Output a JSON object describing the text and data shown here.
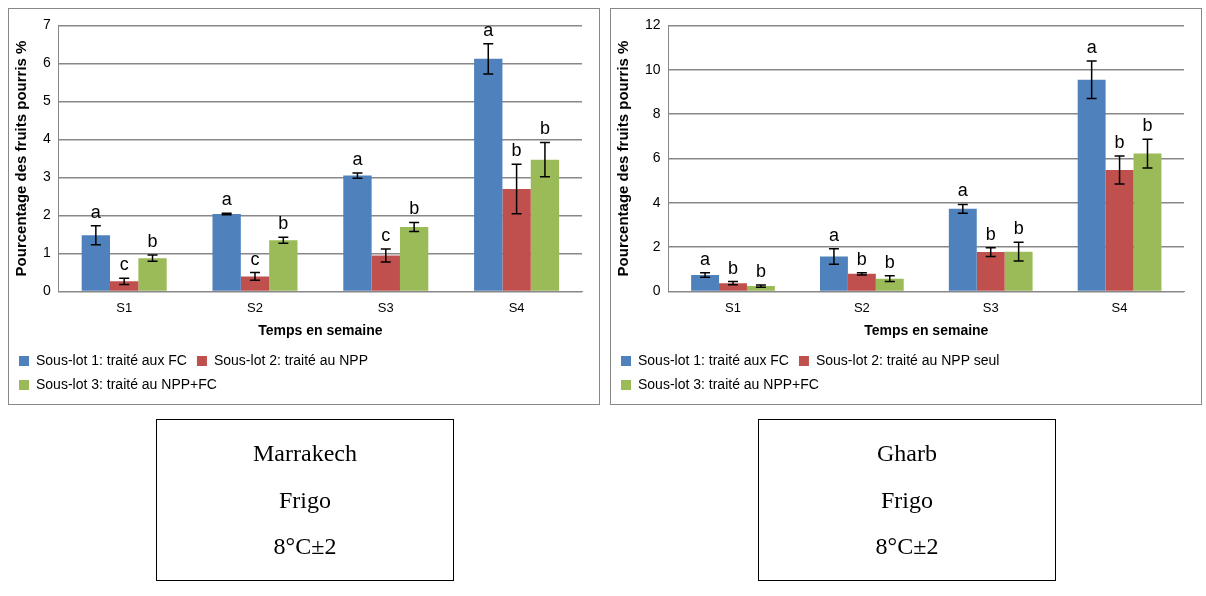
{
  "chart_data": [
    {
      "type": "bar",
      "xlabel": "Temps en semaine",
      "ylabel": "Pourcentage des fruits pourris %",
      "categories": [
        "S1",
        "S2",
        "S3",
        "S4"
      ],
      "ylim": [
        0,
        7
      ],
      "yticks": [
        0,
        1,
        2,
        3,
        4,
        5,
        6,
        7
      ],
      "grid": "y",
      "legend": "bottom",
      "annotations": [
        "Marrakech",
        "Frigo",
        "8°C±2"
      ],
      "series": [
        {
          "name": "Sous-lot 1: traité aux FC",
          "color": "#4f81bd",
          "values": [
            1.48,
            2.04,
            3.05,
            6.12
          ],
          "errors": [
            0.25,
            0.02,
            0.07,
            0.4
          ],
          "value_labels": [
            "a",
            "a",
            "a",
            "a"
          ]
        },
        {
          "name": "Sous-lot 2: traité au NPP",
          "color": "#c0504d",
          "values": [
            0.27,
            0.4,
            0.95,
            2.7
          ],
          "errors": [
            0.08,
            0.1,
            0.17,
            0.65
          ],
          "value_labels": [
            "c",
            "c",
            "c",
            "b"
          ]
        },
        {
          "name": "Sous-lot 3: traité au NPP+FC",
          "color": "#9bbb59",
          "values": [
            0.88,
            1.35,
            1.7,
            3.47
          ],
          "errors": [
            0.08,
            0.08,
            0.12,
            0.45
          ],
          "value_labels": [
            "b",
            "b",
            "b",
            "b"
          ]
        }
      ]
    },
    {
      "type": "bar",
      "xlabel": "Temps en semaine",
      "ylabel": "Pourcentage des fruits pourris %",
      "categories": [
        "S1",
        "S2",
        "S3",
        "S4"
      ],
      "ylim": [
        0,
        12
      ],
      "yticks": [
        0,
        2,
        4,
        6,
        8,
        10,
        12
      ],
      "grid": "y",
      "legend": "bottom",
      "annotations": [
        "Gharb",
        "Frigo",
        "8°C±2"
      ],
      "series": [
        {
          "name": "Sous-lot 1: traité aux FC",
          "color": "#4f81bd",
          "values": [
            0.75,
            1.58,
            3.73,
            9.55
          ],
          "errors": [
            0.1,
            0.35,
            0.2,
            0.85
          ],
          "value_labels": [
            "a",
            "a",
            "a",
            "a"
          ]
        },
        {
          "name": "Sous-lot 2: traité au NPP seul",
          "color": "#c0504d",
          "values": [
            0.38,
            0.8,
            1.78,
            5.48
          ],
          "errors": [
            0.07,
            0.05,
            0.2,
            0.63
          ],
          "value_labels": [
            "b",
            "b",
            "b",
            "b"
          ]
        },
        {
          "name": "Sous-lot 3: traité au NPP+FC",
          "color": "#9bbb59",
          "values": [
            0.25,
            0.58,
            1.8,
            6.22
          ],
          "errors": [
            0.05,
            0.13,
            0.42,
            0.65
          ],
          "value_labels": [
            "b",
            "b",
            "b",
            "b"
          ]
        }
      ]
    }
  ]
}
